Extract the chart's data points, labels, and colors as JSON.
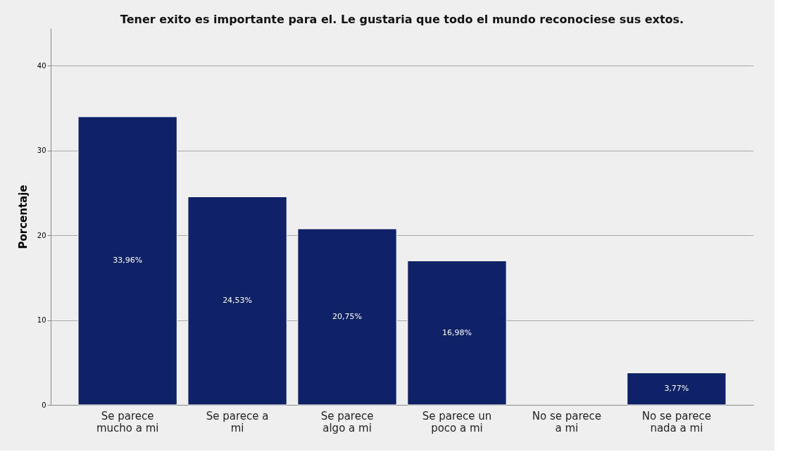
{
  "chart_data": {
    "type": "bar",
    "title": "Tener exito es importante para el. Le gustaria que todo el mundo reconociese sus extos.",
    "ylabel": "Porcentaje",
    "categories": [
      "Se parece mucho a mi",
      "Se parece a mi",
      "Se parece algo a mi",
      "Se parece un poco a mi",
      "No se parece a mi",
      "No se parece nada a mi"
    ],
    "values": [
      33.96,
      24.53,
      20.75,
      16.98,
      null,
      3.77
    ],
    "value_labels": [
      "33,96%",
      "24,53%",
      "20,75%",
      "16,98%",
      null,
      "3,77%"
    ],
    "color": "#0f2167",
    "ylim": [
      0,
      44.4
    ],
    "yticks": [
      0,
      10,
      20,
      30,
      40
    ],
    "grid": "y"
  }
}
